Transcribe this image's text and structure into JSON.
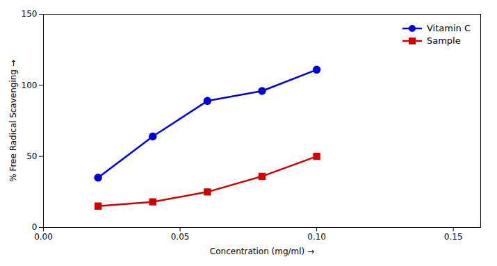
{
  "chart_data": {
    "type": "line",
    "xlabel": "Concentration (mg/ml)",
    "ylabel": "% Free Radical Scavenging",
    "x": [
      0.02,
      0.04,
      0.06,
      0.08,
      0.1
    ],
    "series": [
      {
        "name": "Vitamin C",
        "color": "#0000CC",
        "marker": "circle",
        "values": [
          35,
          64,
          89,
          96,
          111
        ]
      },
      {
        "name": "Sample",
        "color": "#CC0000",
        "marker": "square",
        "values": [
          15,
          18,
          25,
          36,
          50
        ]
      }
    ],
    "xlim": [
      0.0,
      0.16
    ],
    "xticks": [
      {
        "value": 0.0,
        "label": "0.00"
      },
      0.05,
      {
        "value": 0.1,
        "label": "0.10"
      },
      0.15
    ],
    "ylim": [
      0,
      150
    ],
    "yticks": [
      0,
      50,
      100,
      150
    ],
    "grid": false,
    "legend": "upper right"
  }
}
